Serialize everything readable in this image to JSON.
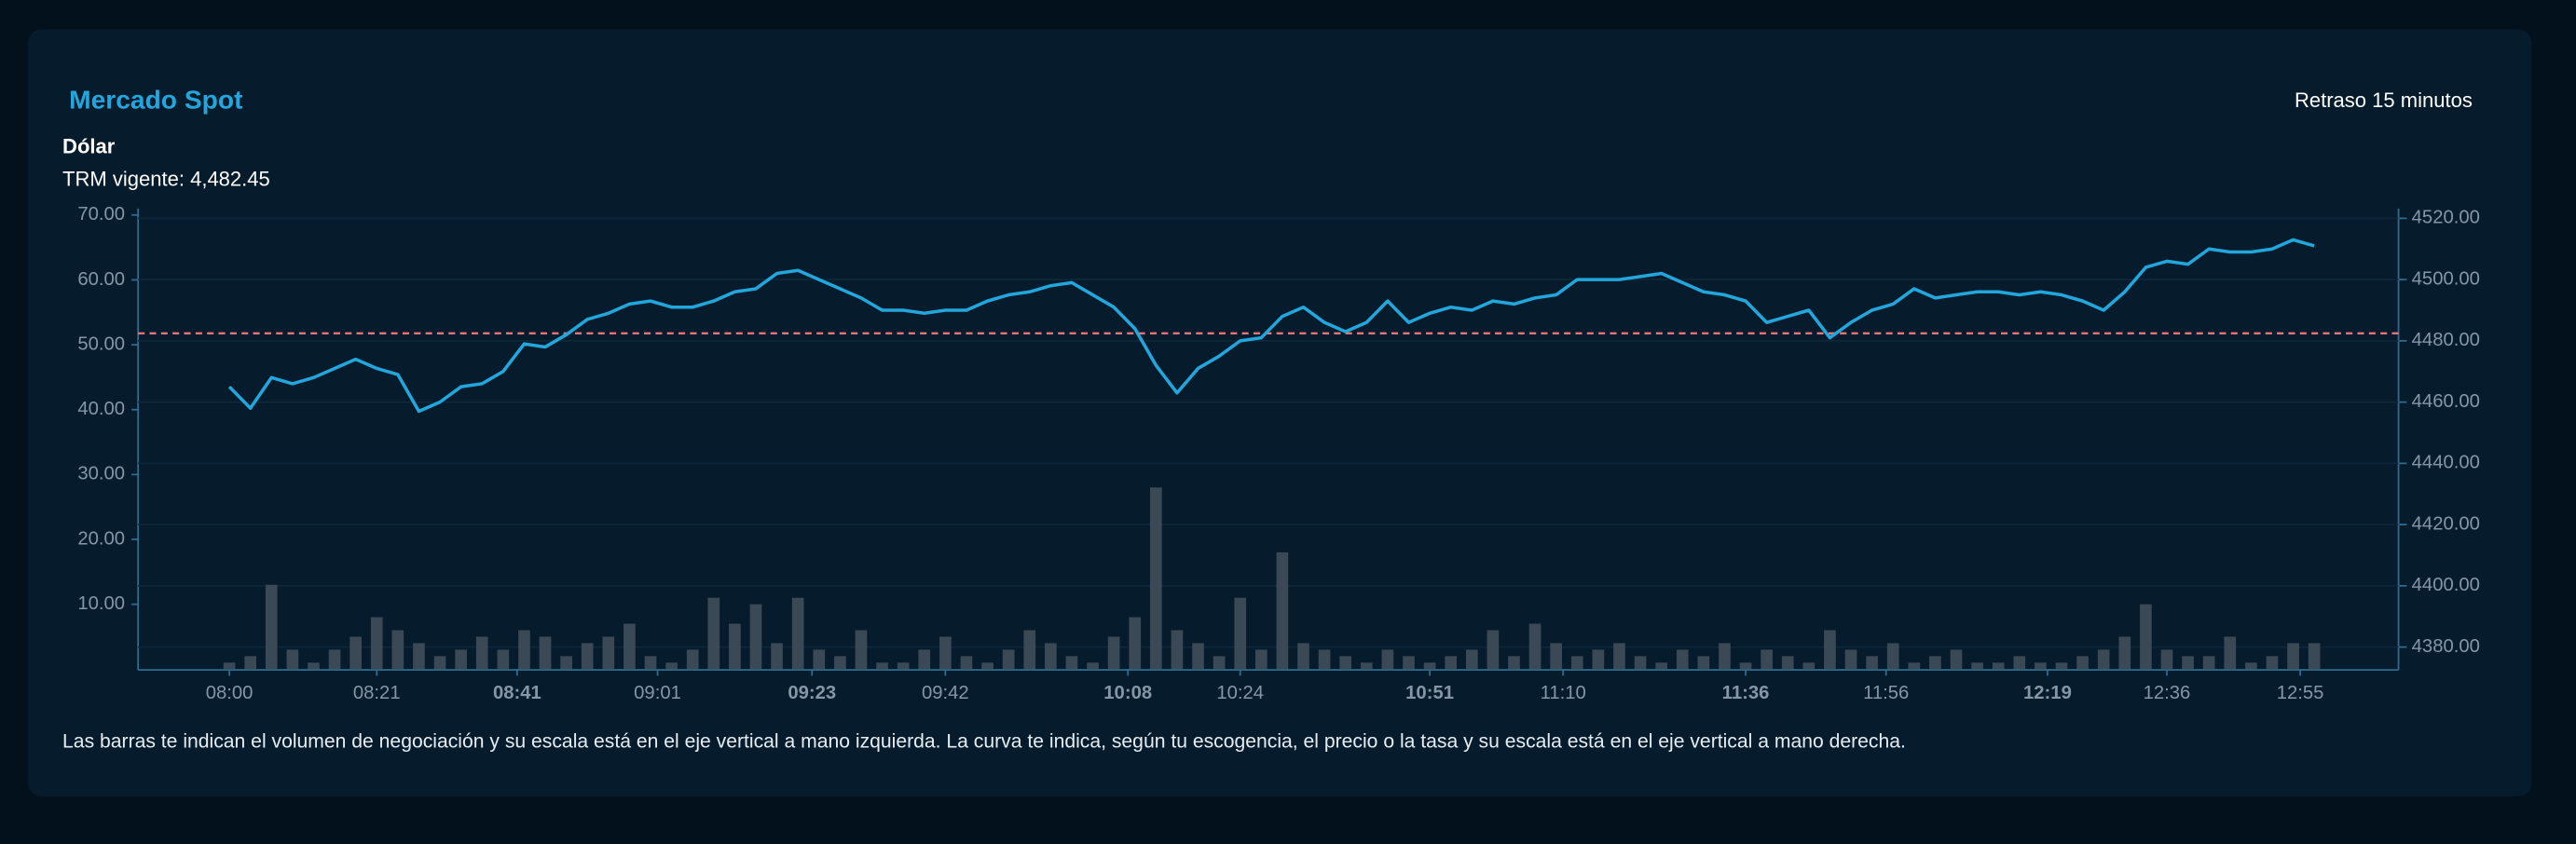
{
  "chart_data": {
    "type": "combo",
    "title": "Mercado Spot",
    "status": "Retraso 15 minutos",
    "subtitle": "Dólar",
    "trm_label": "TRM vigente: 4,482.45",
    "caption": "Las barras te indican el volumen de negociación y su escala está en el eje vertical a mano izquierda. La curva te indica, según tu escogencia, el precio o la tasa y su escala está en el eje vertical a mano derecha.",
    "x": [
      "08:00",
      "08:03",
      "08:06",
      "08:09",
      "08:12",
      "08:15",
      "08:18",
      "08:21",
      "08:24",
      "08:27",
      "08:30",
      "08:33",
      "08:36",
      "08:39",
      "08:42",
      "08:45",
      "08:48",
      "08:51",
      "08:54",
      "08:57",
      "09:00",
      "09:03",
      "09:06",
      "09:09",
      "09:12",
      "09:15",
      "09:18",
      "09:21",
      "09:24",
      "09:27",
      "09:30",
      "09:33",
      "09:36",
      "09:39",
      "09:42",
      "09:45",
      "09:48",
      "09:51",
      "09:54",
      "09:57",
      "10:00",
      "10:03",
      "10:06",
      "10:09",
      "10:12",
      "10:15",
      "10:18",
      "10:21",
      "10:24",
      "10:27",
      "10:30",
      "10:33",
      "10:36",
      "10:39",
      "10:42",
      "10:45",
      "10:48",
      "10:51",
      "10:54",
      "10:57",
      "11:00",
      "11:03",
      "11:06",
      "11:09",
      "11:12",
      "11:15",
      "11:18",
      "11:21",
      "11:24",
      "11:27",
      "11:30",
      "11:33",
      "11:36",
      "11:39",
      "11:42",
      "11:45",
      "11:48",
      "11:51",
      "11:54",
      "11:57",
      "12:00",
      "12:03",
      "12:06",
      "12:09",
      "12:12",
      "12:15",
      "12:18",
      "12:21",
      "12:24",
      "12:27",
      "12:30",
      "12:33",
      "12:36",
      "12:39",
      "12:42",
      "12:45",
      "12:48",
      "12:51",
      "12:54",
      "12:57"
    ],
    "xlim": [
      "07:47",
      "13:09"
    ],
    "xticks": [
      "08:00",
      "08:21",
      "08:41",
      "09:01",
      "09:23",
      "09:42",
      "10:08",
      "10:24",
      "10:51",
      "11:10",
      "11:36",
      "11:56",
      "12:19",
      "12:36",
      "12:55"
    ],
    "xticks_bold": [
      false,
      false,
      true,
      false,
      true,
      false,
      true,
      false,
      true,
      false,
      true,
      false,
      true,
      false,
      false
    ],
    "ylim": [
      0,
      71
    ],
    "yticks": [
      {
        "value": 10,
        "label": "10.00"
      },
      {
        "value": 20,
        "label": "20.00"
      },
      {
        "value": 30,
        "label": "30.00"
      },
      {
        "value": 40,
        "label": "40.00"
      },
      {
        "value": 50,
        "label": "50.00"
      },
      {
        "value": 60,
        "label": "60.00"
      },
      {
        "value": 70,
        "label": "70.00"
      }
    ],
    "y2lim": [
      4372.8,
      4523.2
    ],
    "y2ticks": [
      {
        "value": 4380,
        "label": "4380.00"
      },
      {
        "value": 4400,
        "label": "4400.00"
      },
      {
        "value": 4420,
        "label": "4420.00"
      },
      {
        "value": 4440,
        "label": "4440.00"
      },
      {
        "value": 4460,
        "label": "4460.00"
      },
      {
        "value": 4480,
        "label": "4480.00"
      },
      {
        "value": 4500,
        "label": "4500.00"
      },
      {
        "value": 4520,
        "label": "4520.00"
      }
    ],
    "grid": true,
    "reference_line": {
      "value": 4482.45,
      "axis": "y2",
      "color": "#e8737a"
    },
    "series": [
      {
        "type": "bar",
        "axis": "y",
        "color": "#3b4956",
        "values": [
          1,
          2,
          13,
          3,
          1,
          3,
          5,
          8,
          6,
          4,
          2,
          3,
          5,
          3,
          6,
          5,
          2,
          4,
          5,
          7,
          2,
          1,
          3,
          11,
          7,
          10,
          4,
          11,
          3,
          2,
          6,
          1,
          1,
          3,
          5,
          2,
          1,
          3,
          6,
          4,
          2,
          1,
          5,
          8,
          28,
          6,
          4,
          2,
          11,
          3,
          18,
          4,
          3,
          2,
          1,
          3,
          2,
          1,
          2,
          3,
          6,
          2,
          7,
          4,
          2,
          3,
          4,
          2,
          1,
          3,
          2,
          4,
          1,
          3,
          2,
          1,
          6,
          3,
          2,
          4,
          1,
          2,
          3,
          1,
          1,
          2,
          1,
          1,
          2,
          3,
          5,
          10,
          3,
          2,
          2,
          5,
          1,
          2,
          4,
          4
        ]
      },
      {
        "type": "line",
        "axis": "y2",
        "color": "#22a6dc",
        "values": [
          4465,
          4458,
          4468,
          4466,
          4468,
          4471,
          4474,
          4471,
          4469,
          4457,
          4460,
          4465,
          4466,
          4470,
          4479,
          4478,
          4482,
          4487,
          4489,
          4492,
          4493,
          4491,
          4491,
          4493,
          4496,
          4497,
          4502,
          4503,
          4500,
          4497,
          4494,
          4490,
          4490,
          4489,
          4490,
          4490,
          4493,
          4495,
          4496,
          4498,
          4499,
          4495,
          4491,
          4484,
          4472,
          4463,
          4471,
          4475,
          4480,
          4481,
          4488,
          4491,
          4486,
          4483,
          4486,
          4493,
          4486,
          4489,
          4491,
          4490,
          4493,
          4492,
          4494,
          4495,
          4500,
          4500,
          4500,
          4501,
          4502,
          4499,
          4496,
          4495,
          4493,
          4486,
          4488,
          4490,
          4481,
          4486,
          4490,
          4492,
          4497,
          4494,
          4495,
          4496,
          4496,
          4495,
          4496,
          4495,
          4493,
          4490,
          4496,
          4504,
          4506,
          4505,
          4510,
          4509,
          4509,
          4510,
          4513,
          4511
        ]
      }
    ]
  }
}
